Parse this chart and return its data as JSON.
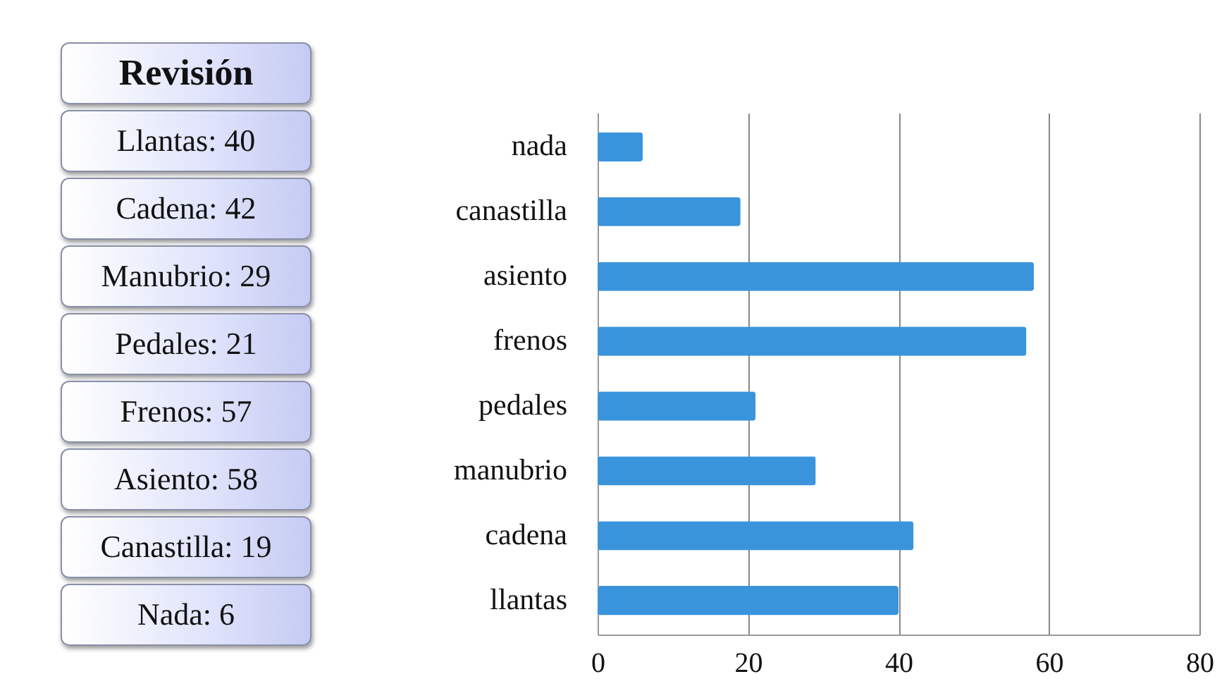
{
  "chart_data": {
    "type": "bar",
    "orientation": "horizontal",
    "title": "Revisión",
    "categories": [
      "nada",
      "canastilla",
      "asiento",
      "frenos",
      "pedales",
      "manubrio",
      "cadena",
      "llantas"
    ],
    "values": [
      6,
      19,
      58,
      57,
      21,
      29,
      42,
      40
    ],
    "color": "#3a94dc",
    "xlim": [
      0,
      80
    ],
    "xticks": [
      0,
      20,
      40,
      60,
      80
    ],
    "grid": "x",
    "annotations": [
      "Llantas: 40",
      "Cadena: 42",
      "Manubrio: 29",
      "Pedales: 21",
      "Frenos: 57",
      "Asiento: 58",
      "Canastilla: 19",
      "Nada: 6"
    ]
  }
}
